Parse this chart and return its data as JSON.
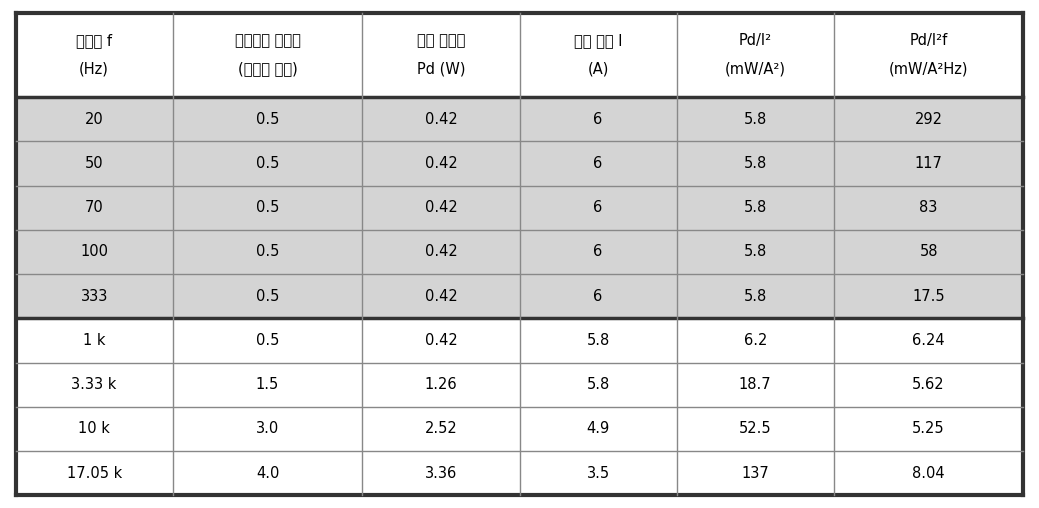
{
  "headers_line1": [
    "진동수 f",
    "기체헬륨 증가량",
    "환산 발열량",
    "전류 진폭 I",
    "Pd/I²",
    "Pd/I²f"
  ],
  "headers_line2": [
    "(Hz)",
    "(유량계 눈금)",
    "Pd (W)",
    "(A)",
    "(mW/A²)",
    "(mW/A²Hz)"
  ],
  "rows": [
    [
      "20",
      "0.5",
      "0.42",
      "6",
      "5.8",
      "292"
    ],
    [
      "50",
      "0.5",
      "0.42",
      "6",
      "5.8",
      "117"
    ],
    [
      "70",
      "0.5",
      "0.42",
      "6",
      "5.8",
      "83"
    ],
    [
      "100",
      "0.5",
      "0.42",
      "6",
      "5.8",
      "58"
    ],
    [
      "333",
      "0.5",
      "0.42",
      "6",
      "5.8",
      "17.5"
    ],
    [
      "1 k",
      "0.5",
      "0.42",
      "5.8",
      "6.2",
      "6.24"
    ],
    [
      "3.33 k",
      "1.5",
      "1.26",
      "5.8",
      "18.7",
      "5.62"
    ],
    [
      "10 k",
      "3.0",
      "2.52",
      "4.9",
      "52.5",
      "5.25"
    ],
    [
      "17.05 k",
      "4.0",
      "3.36",
      "3.5",
      "137",
      "8.04"
    ]
  ],
  "row_bg": [
    "#d4d4d4",
    "#d4d4d4",
    "#d4d4d4",
    "#d4d4d4",
    "#d4d4d4",
    "#ffffff",
    "#ffffff",
    "#ffffff",
    "#ffffff"
  ],
  "header_bg": "#ffffff",
  "outer_lw": 3.0,
  "header_sep_lw": 2.5,
  "group_sep_lw": 2.5,
  "inner_lw": 1.0,
  "outer_color": "#333333",
  "inner_color": "#888888",
  "text_color": "#000000",
  "col_ratios": [
    0.145,
    0.175,
    0.145,
    0.145,
    0.145,
    0.175
  ],
  "fig_width": 10.39,
  "fig_height": 5.08
}
